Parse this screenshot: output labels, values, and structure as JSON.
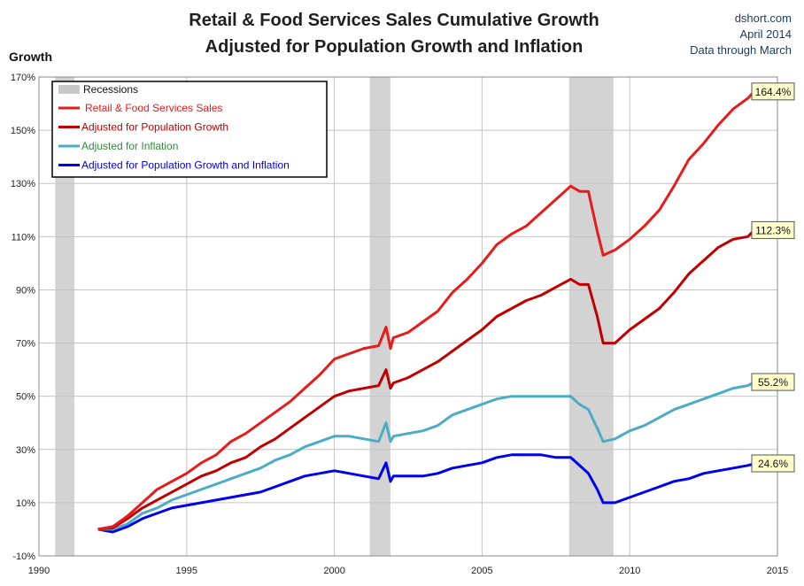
{
  "header": {
    "title_line1": "Retail & Food Services Sales Cumulative Growth",
    "title_line2": "Adjusted for Population Growth and Inflation",
    "source": "dshort.com",
    "date": "April 2014",
    "note": "Data through March"
  },
  "chart_data": {
    "type": "line",
    "ylabel": "Growth",
    "xlim": [
      1990,
      2015
    ],
    "ylim": [
      -10,
      170
    ],
    "x_ticks": [
      1990,
      1995,
      2000,
      2005,
      2010,
      2015
    ],
    "y_ticks": [
      -10,
      10,
      30,
      50,
      70,
      90,
      110,
      130,
      150,
      170
    ],
    "y_tick_labels": [
      "-10%",
      "10%",
      "30%",
      "50%",
      "70%",
      "90%",
      "110%",
      "130%",
      "150%",
      "170%"
    ],
    "grid": true,
    "legend_position": "top-left",
    "recessions_label": "Recessions",
    "recessions": [
      [
        1990.55,
        1991.2
      ],
      [
        2001.2,
        2001.9
      ],
      [
        2007.95,
        2009.45
      ]
    ],
    "series": [
      {
        "name": "Retail & Food Services Sales",
        "color": "#e81b1b",
        "legend_color": "#e81b1b",
        "end_label": "164.4%",
        "points": [
          [
            1992.0,
            0
          ],
          [
            1992.5,
            1
          ],
          [
            1993.0,
            5
          ],
          [
            1993.5,
            10
          ],
          [
            1994.0,
            15
          ],
          [
            1994.5,
            18
          ],
          [
            1995.0,
            21
          ],
          [
            1995.5,
            25
          ],
          [
            1996.0,
            28
          ],
          [
            1996.5,
            33
          ],
          [
            1997.0,
            36
          ],
          [
            1997.5,
            40
          ],
          [
            1998.0,
            44
          ],
          [
            1998.5,
            48
          ],
          [
            1999.0,
            53
          ],
          [
            1999.5,
            58
          ],
          [
            2000.0,
            64
          ],
          [
            2000.5,
            66
          ],
          [
            2001.0,
            68
          ],
          [
            2001.5,
            69
          ],
          [
            2001.75,
            76
          ],
          [
            2001.9,
            68
          ],
          [
            2002.0,
            72
          ],
          [
            2002.5,
            74
          ],
          [
            2003.0,
            78
          ],
          [
            2003.5,
            82
          ],
          [
            2004.0,
            89
          ],
          [
            2004.5,
            94
          ],
          [
            2005.0,
            100
          ],
          [
            2005.5,
            107
          ],
          [
            2006.0,
            111
          ],
          [
            2006.5,
            114
          ],
          [
            2007.0,
            119
          ],
          [
            2007.5,
            124
          ],
          [
            2008.0,
            129
          ],
          [
            2008.3,
            127
          ],
          [
            2008.6,
            127
          ],
          [
            2008.9,
            112
          ],
          [
            2009.1,
            103
          ],
          [
            2009.5,
            105
          ],
          [
            2010.0,
            109
          ],
          [
            2010.5,
            114
          ],
          [
            2011.0,
            120
          ],
          [
            2011.5,
            129
          ],
          [
            2012.0,
            139
          ],
          [
            2012.5,
            145
          ],
          [
            2013.0,
            152
          ],
          [
            2013.5,
            158
          ],
          [
            2014.0,
            162
          ],
          [
            2014.2,
            164.4
          ]
        ]
      },
      {
        "name": "Adjusted for Population Growth",
        "color": "#c00000",
        "legend_color": "#c00000",
        "end_label": "112.3%",
        "points": [
          [
            1992.0,
            0
          ],
          [
            1992.5,
            0.5
          ],
          [
            1993.0,
            4
          ],
          [
            1993.5,
            8
          ],
          [
            1994.0,
            11
          ],
          [
            1994.5,
            14
          ],
          [
            1995.0,
            17
          ],
          [
            1995.5,
            20
          ],
          [
            1996.0,
            22
          ],
          [
            1996.5,
            25
          ],
          [
            1997.0,
            27
          ],
          [
            1997.5,
            31
          ],
          [
            1998.0,
            34
          ],
          [
            1998.5,
            38
          ],
          [
            1999.0,
            42
          ],
          [
            1999.5,
            46
          ],
          [
            2000.0,
            50
          ],
          [
            2000.5,
            52
          ],
          [
            2001.0,
            53
          ],
          [
            2001.5,
            54
          ],
          [
            2001.75,
            60
          ],
          [
            2001.9,
            53
          ],
          [
            2002.0,
            55
          ],
          [
            2002.5,
            57
          ],
          [
            2003.0,
            60
          ],
          [
            2003.5,
            63
          ],
          [
            2004.0,
            67
          ],
          [
            2004.5,
            71
          ],
          [
            2005.0,
            75
          ],
          [
            2005.5,
            80
          ],
          [
            2006.0,
            83
          ],
          [
            2006.5,
            86
          ],
          [
            2007.0,
            88
          ],
          [
            2007.5,
            91
          ],
          [
            2008.0,
            94
          ],
          [
            2008.3,
            92
          ],
          [
            2008.6,
            92
          ],
          [
            2008.9,
            80
          ],
          [
            2009.1,
            70
          ],
          [
            2009.5,
            70
          ],
          [
            2010.0,
            75
          ],
          [
            2010.5,
            79
          ],
          [
            2011.0,
            83
          ],
          [
            2011.5,
            89
          ],
          [
            2012.0,
            96
          ],
          [
            2012.5,
            101
          ],
          [
            2013.0,
            106
          ],
          [
            2013.5,
            109
          ],
          [
            2014.0,
            110
          ],
          [
            2014.2,
            112.3
          ]
        ]
      },
      {
        "name": "Adjusted for Inflation",
        "color": "#4bacc6",
        "legend_color": "#2e8b3c",
        "end_label": "55.2%",
        "points": [
          [
            1992.0,
            0
          ],
          [
            1992.5,
            0
          ],
          [
            1993.0,
            2
          ],
          [
            1993.5,
            6
          ],
          [
            1994.0,
            8
          ],
          [
            1994.5,
            11
          ],
          [
            1995.0,
            13
          ],
          [
            1995.5,
            15
          ],
          [
            1996.0,
            17
          ],
          [
            1996.5,
            19
          ],
          [
            1997.0,
            21
          ],
          [
            1997.5,
            23
          ],
          [
            1998.0,
            26
          ],
          [
            1998.5,
            28
          ],
          [
            1999.0,
            31
          ],
          [
            1999.5,
            33
          ],
          [
            2000.0,
            35
          ],
          [
            2000.5,
            35
          ],
          [
            2001.0,
            34
          ],
          [
            2001.5,
            33
          ],
          [
            2001.75,
            40
          ],
          [
            2001.9,
            33
          ],
          [
            2002.0,
            35
          ],
          [
            2002.5,
            36
          ],
          [
            2003.0,
            37
          ],
          [
            2003.5,
            39
          ],
          [
            2004.0,
            43
          ],
          [
            2004.5,
            45
          ],
          [
            2005.0,
            47
          ],
          [
            2005.5,
            49
          ],
          [
            2006.0,
            50
          ],
          [
            2006.5,
            50
          ],
          [
            2007.0,
            50
          ],
          [
            2007.5,
            50
          ],
          [
            2008.0,
            50
          ],
          [
            2008.3,
            47
          ],
          [
            2008.6,
            45
          ],
          [
            2008.9,
            38
          ],
          [
            2009.1,
            33
          ],
          [
            2009.5,
            34
          ],
          [
            2010.0,
            37
          ],
          [
            2010.5,
            39
          ],
          [
            2011.0,
            42
          ],
          [
            2011.5,
            45
          ],
          [
            2012.0,
            47
          ],
          [
            2012.5,
            49
          ],
          [
            2013.0,
            51
          ],
          [
            2013.5,
            53
          ],
          [
            2014.0,
            54
          ],
          [
            2014.2,
            55.2
          ]
        ]
      },
      {
        "name": "Adjusted for Population Growth and Inflation",
        "color": "#0000ee",
        "legend_color": "#0000ee",
        "end_label": "24.6%",
        "points": [
          [
            1992.0,
            0
          ],
          [
            1992.5,
            -1
          ],
          [
            1993.0,
            1
          ],
          [
            1993.5,
            4
          ],
          [
            1994.0,
            6
          ],
          [
            1994.5,
            8
          ],
          [
            1995.0,
            9
          ],
          [
            1995.5,
            10
          ],
          [
            1996.0,
            11
          ],
          [
            1996.5,
            12
          ],
          [
            1997.0,
            13
          ],
          [
            1997.5,
            14
          ],
          [
            1998.0,
            16
          ],
          [
            1998.5,
            18
          ],
          [
            1999.0,
            20
          ],
          [
            1999.5,
            21
          ],
          [
            2000.0,
            22
          ],
          [
            2000.5,
            21
          ],
          [
            2001.0,
            20
          ],
          [
            2001.5,
            19
          ],
          [
            2001.75,
            25
          ],
          [
            2001.9,
            18
          ],
          [
            2002.0,
            20
          ],
          [
            2002.5,
            20
          ],
          [
            2003.0,
            20
          ],
          [
            2003.5,
            21
          ],
          [
            2004.0,
            23
          ],
          [
            2004.5,
            24
          ],
          [
            2005.0,
            25
          ],
          [
            2005.5,
            27
          ],
          [
            2006.0,
            28
          ],
          [
            2006.5,
            28
          ],
          [
            2007.0,
            28
          ],
          [
            2007.5,
            27
          ],
          [
            2008.0,
            27
          ],
          [
            2008.3,
            24
          ],
          [
            2008.6,
            21
          ],
          [
            2008.9,
            15
          ],
          [
            2009.1,
            10
          ],
          [
            2009.5,
            10
          ],
          [
            2010.0,
            12
          ],
          [
            2010.5,
            14
          ],
          [
            2011.0,
            16
          ],
          [
            2011.5,
            18
          ],
          [
            2012.0,
            19
          ],
          [
            2012.5,
            21
          ],
          [
            2013.0,
            22
          ],
          [
            2013.5,
            23
          ],
          [
            2014.0,
            24
          ],
          [
            2014.2,
            24.6
          ]
        ]
      }
    ]
  }
}
